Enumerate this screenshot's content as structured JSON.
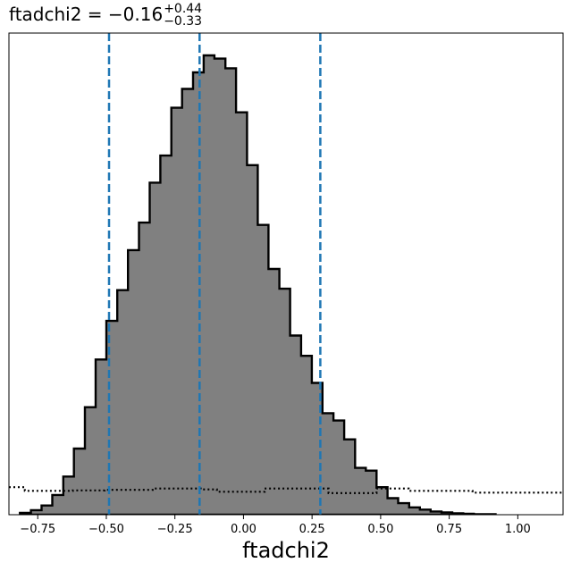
{
  "chart_data": {
    "type": "histogram",
    "title": {
      "param": "ftadchi2",
      "value": "−0.16",
      "upper": "+0.44",
      "lower": "−0.33"
    },
    "xlabel": "ftadchi2",
    "ylabel": "",
    "xlim": [
      -0.855,
      1.165
    ],
    "ylim": [
      0,
      1.0
    ],
    "x_ticks": [
      -0.75,
      -0.5,
      -0.25,
      0.0,
      0.25,
      0.5,
      0.75,
      1.0
    ],
    "x_tick_labels": [
      "−0.75",
      "−0.50",
      "−0.25",
      "0.00",
      "0.25",
      "0.50",
      "0.75",
      "1.00"
    ],
    "y_ticks_shown": false,
    "grid": false,
    "posterior": {
      "style": "filled step histogram",
      "fill": "#808080",
      "edge": "#000000",
      "bin_edges": [
        -0.815,
        -0.775,
        -0.736,
        -0.697,
        -0.657,
        -0.618,
        -0.578,
        -0.539,
        -0.5,
        -0.46,
        -0.421,
        -0.381,
        -0.342,
        -0.303,
        -0.263,
        -0.224,
        -0.184,
        -0.145,
        -0.106,
        -0.066,
        -0.027,
        0.013,
        0.052,
        0.091,
        0.131,
        0.17,
        0.21,
        0.249,
        0.288,
        0.328,
        0.367,
        0.407,
        0.446,
        0.485,
        0.525,
        0.564,
        0.604,
        0.643,
        0.682,
        0.722,
        0.761,
        0.801,
        0.84,
        0.879,
        0.919
      ],
      "counts": [
        0.004,
        0.01,
        0.02,
        0.043,
        0.083,
        0.144,
        0.234,
        0.338,
        0.422,
        0.489,
        0.576,
        0.636,
        0.723,
        0.782,
        0.886,
        0.927,
        0.963,
        1.0,
        0.993,
        0.972,
        0.876,
        0.761,
        0.631,
        0.535,
        0.492,
        0.39,
        0.346,
        0.287,
        0.221,
        0.205,
        0.164,
        0.102,
        0.096,
        0.06,
        0.036,
        0.025,
        0.016,
        0.011,
        0.007,
        0.005,
        0.003,
        0.002,
        0.001,
        0.001
      ]
    },
    "prior": {
      "style": "dotted step line",
      "color": "#000000",
      "bin_edges": [
        -0.855,
        -0.797,
        -0.739,
        -0.68,
        -0.622,
        -0.564,
        -0.506,
        -0.447,
        -0.389,
        -0.331,
        -0.272,
        -0.214,
        -0.156,
        -0.097,
        -0.039,
        0.019,
        0.077,
        0.136,
        0.194,
        0.252,
        0.31,
        0.369,
        0.427,
        0.485,
        0.544,
        0.602,
        0.66,
        0.718,
        0.777,
        0.835,
        0.893,
        0.951,
        1.01,
        1.068,
        1.126,
        1.165
      ],
      "counts": [
        0.06,
        0.052,
        0.052,
        0.052,
        0.053,
        0.053,
        0.054,
        0.054,
        0.054,
        0.057,
        0.057,
        0.057,
        0.055,
        0.05,
        0.05,
        0.05,
        0.057,
        0.057,
        0.057,
        0.057,
        0.047,
        0.047,
        0.047,
        0.057,
        0.057,
        0.052,
        0.052,
        0.052,
        0.052,
        0.048,
        0.048,
        0.048,
        0.048,
        0.048,
        0.048
      ]
    },
    "quantile_lines": {
      "style": "dashed",
      "color": "#1f77b4",
      "values": [
        -0.49,
        -0.16,
        0.28
      ]
    }
  }
}
